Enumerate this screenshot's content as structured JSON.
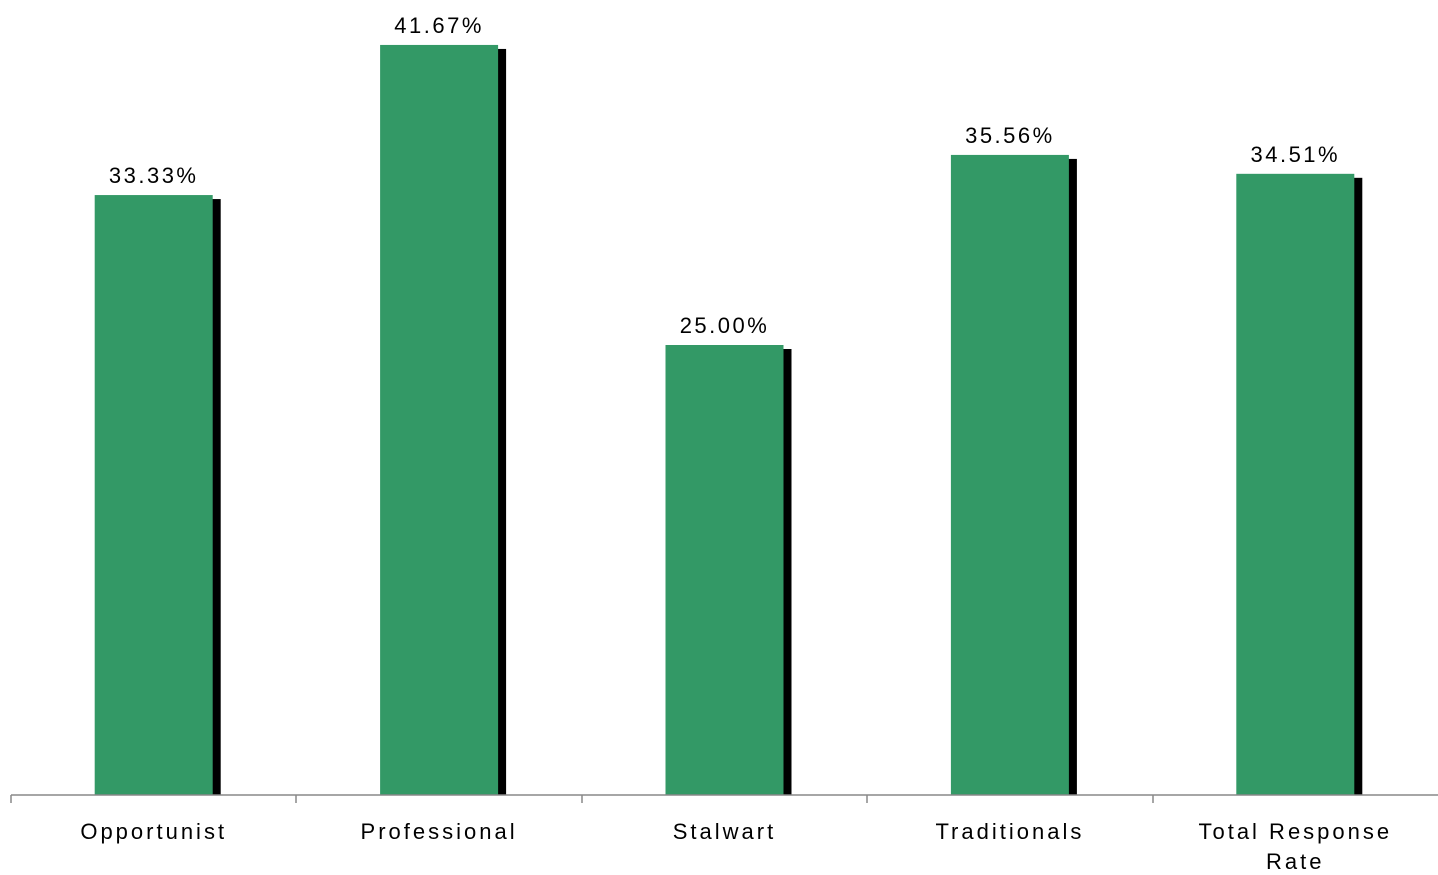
{
  "chart_data": {
    "type": "bar",
    "categories": [
      "Opportunist",
      "Professional",
      "Stalwart",
      "Traditionals",
      "Total Response Rate"
    ],
    "category_lines": [
      [
        "Opportunist"
      ],
      [
        "Professional"
      ],
      [
        "Stalwart"
      ],
      [
        "Traditionals"
      ],
      [
        "Total Response",
        "Rate"
      ]
    ],
    "values": [
      33.33,
      41.67,
      25.0,
      35.56,
      34.51
    ],
    "data_labels": [
      "33.33%",
      "41.67%",
      "25.00%",
      "35.56%",
      "34.51%"
    ],
    "title": "",
    "xlabel": "",
    "ylabel": "",
    "ylim": [
      0,
      45
    ],
    "y_unit": "%",
    "grid": false,
    "legend": "none",
    "bar_shadow": true,
    "colors": {
      "bar": "#339966",
      "shadow": "#000000",
      "axis": "#888888",
      "text": "#000000"
    }
  }
}
